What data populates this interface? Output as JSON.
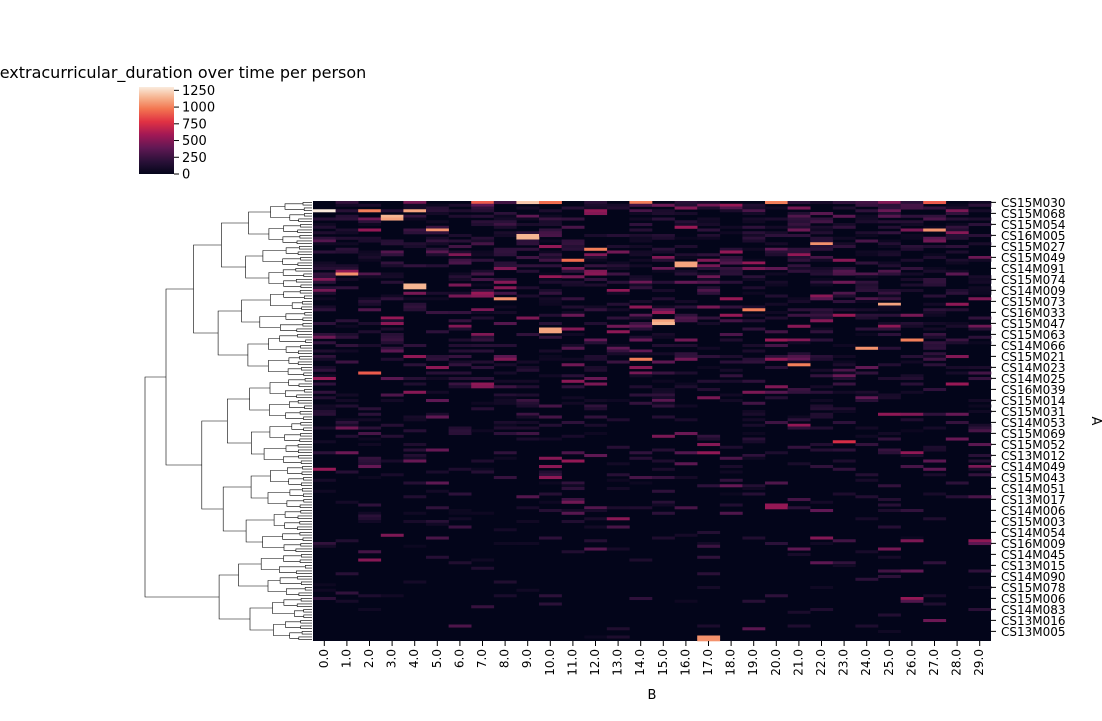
{
  "chart_data": {
    "type": "heatmap",
    "title": "extracurricular_duration over time per person",
    "xlabel": "B",
    "ylabel": "A",
    "x_ticks": [
      "0.0",
      "1.0",
      "2.0",
      "3.0",
      "4.0",
      "5.0",
      "6.0",
      "7.0",
      "8.0",
      "9.0",
      "10.0",
      "11.0",
      "12.0",
      "13.0",
      "14.0",
      "15.0",
      "16.0",
      "17.0",
      "18.0",
      "19.0",
      "20.0",
      "21.0",
      "22.0",
      "23.0",
      "24.0",
      "25.0",
      "26.0",
      "27.0",
      "28.0",
      "29.0"
    ],
    "y_ticks": [
      "CS15M030",
      "CS15M068",
      "CS15M054",
      "CS16M005",
      "CS15M027",
      "CS15M049",
      "CS14M091",
      "CS15M074",
      "CS14M009",
      "CS15M073",
      "CS16M033",
      "CS15M047",
      "CS15M063",
      "CS14M066",
      "CS15M021",
      "CS14M023",
      "CS14M025",
      "CS16M039",
      "CS15M014",
      "CS15M031",
      "CS14M053",
      "CS15M069",
      "CS15M052",
      "CS13M012",
      "CS14M049",
      "CS15M043",
      "CS14M051",
      "CS13M017",
      "CS14M006",
      "CS15M003",
      "CS14M054",
      "CS16M009",
      "CS14M045",
      "CS13M015",
      "CS14M090",
      "CS15M078",
      "CS15M006",
      "CS14M083",
      "CS13M016",
      "CS13M005"
    ],
    "colorbar": {
      "range": [
        0,
        1300
      ],
      "ticks": [
        "0",
        "250",
        "500",
        "750",
        "1000",
        "1250"
      ]
    },
    "n_rows": 160,
    "dendrogram": "left",
    "hot_cells": [
      {
        "row": 0,
        "col": 7,
        "value": 900
      },
      {
        "row": 0,
        "col": 9,
        "value": 1200
      },
      {
        "row": 0,
        "col": 10,
        "value": 950
      },
      {
        "row": 0,
        "col": 14,
        "value": 1000
      },
      {
        "row": 0,
        "col": 20,
        "value": 1000
      },
      {
        "row": 0,
        "col": 27,
        "value": 900
      },
      {
        "row": 3,
        "col": 0,
        "value": 1300
      },
      {
        "row": 3,
        "col": 2,
        "value": 1000
      },
      {
        "row": 3,
        "col": 4,
        "value": 1100
      },
      {
        "row": 5,
        "col": 3,
        "value": 1150
      },
      {
        "row": 6,
        "col": 3,
        "value": 1100
      },
      {
        "row": 10,
        "col": 5,
        "value": 1050
      },
      {
        "row": 10,
        "col": 27,
        "value": 1050
      },
      {
        "row": 12,
        "col": 9,
        "value": 1150
      },
      {
        "row": 13,
        "col": 9,
        "value": 1150
      },
      {
        "row": 15,
        "col": 22,
        "value": 1050
      },
      {
        "row": 17,
        "col": 12,
        "value": 1000
      },
      {
        "row": 21,
        "col": 11,
        "value": 950
      },
      {
        "row": 22,
        "col": 16,
        "value": 1100
      },
      {
        "row": 23,
        "col": 16,
        "value": 1100
      },
      {
        "row": 26,
        "col": 1,
        "value": 1050
      },
      {
        "row": 30,
        "col": 4,
        "value": 1150
      },
      {
        "row": 31,
        "col": 4,
        "value": 1150
      },
      {
        "row": 35,
        "col": 8,
        "value": 1050
      },
      {
        "row": 37,
        "col": 25,
        "value": 1100
      },
      {
        "row": 39,
        "col": 19,
        "value": 1000
      },
      {
        "row": 43,
        "col": 15,
        "value": 1100
      },
      {
        "row": 44,
        "col": 15,
        "value": 1150
      },
      {
        "row": 46,
        "col": 10,
        "value": 1100
      },
      {
        "row": 47,
        "col": 10,
        "value": 1100
      },
      {
        "row": 50,
        "col": 26,
        "value": 1000
      },
      {
        "row": 53,
        "col": 24,
        "value": 1050
      },
      {
        "row": 57,
        "col": 14,
        "value": 1000
      },
      {
        "row": 59,
        "col": 21,
        "value": 1000
      },
      {
        "row": 62,
        "col": 2,
        "value": 900
      },
      {
        "row": 87,
        "col": 23,
        "value": 750
      },
      {
        "row": 158,
        "col": 17,
        "value": 1050
      },
      {
        "row": 159,
        "col": 17,
        "value": 1050
      }
    ]
  }
}
